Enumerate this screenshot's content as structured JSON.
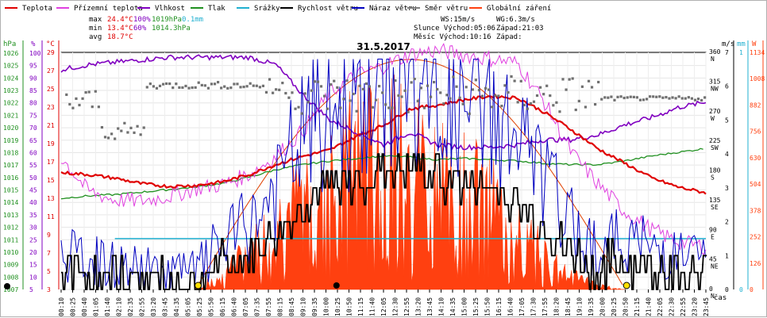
{
  "chart_data": {
    "type": "line",
    "title": "31.5.2017",
    "legend": [
      {
        "name": "Teplota",
        "color": "#e00000"
      },
      {
        "name": "Přízemní teplota",
        "color": "#e040e0"
      },
      {
        "name": "Vlhkost",
        "color": "#8000c0"
      },
      {
        "name": "Tlak",
        "color": "#209020"
      },
      {
        "name": "Srážky",
        "color": "#20b0d0"
      },
      {
        "name": "Rychlost větru",
        "color": "#000000"
      },
      {
        "name": "Náraz větru",
        "color": "#0000c0"
      },
      {
        "name": "Směr větru",
        "color": "#808080"
      },
      {
        "name": "Globální záření",
        "color": "#ff4010"
      }
    ],
    "stats": {
      "max": {
        "label": "max",
        "temp": "24.4°C",
        "hum": "100%",
        "press": "1019hPa",
        "rain": "0.1mm"
      },
      "min": {
        "label": "min",
        "temp": "13.4°C",
        "hum": "60%",
        "press": "1014.3hPa"
      },
      "avg": {
        "label": "avg",
        "temp": "18.7°C"
      }
    },
    "sun": {
      "ws": "WS:15m/s",
      "wg": "WG:6.3m/s",
      "slunce": "Slunce Východ:05:06",
      "slunce_zapad": "Západ:21:03",
      "mesic": "Měsíc  Východ:10:16",
      "mesic_zapad": "Západ:"
    },
    "axes": {
      "hpa_label": "hPa",
      "pct_label": "%",
      "c_label": "°C",
      "ms_label": "m/s",
      "mm_label": "mm",
      "w_label": "W",
      "hpa_ticks": [
        "1026",
        "1025",
        "1024",
        "1023",
        "1022",
        "1021",
        "1020",
        "1019",
        "1018",
        "1017",
        "1016",
        "1015",
        "1014",
        "1013",
        "1012",
        "1011",
        "1010",
        "1009",
        "1008",
        "1007"
      ],
      "pct_ticks": [
        "100",
        "95",
        "90",
        "85",
        "80",
        "75",
        "70",
        "65",
        "60",
        "55",
        "50",
        "45",
        "40",
        "35",
        "30",
        "25",
        "20",
        "15",
        "10",
        "5"
      ],
      "c_ticks": [
        "29",
        "27",
        "25",
        "23",
        "21",
        "19",
        "17",
        "15",
        "13",
        "11",
        "9",
        "7",
        "5",
        "3"
      ],
      "dir_ticks": [
        {
          "v": "360",
          "d": "N"
        },
        {
          "v": "315",
          "d": "NW"
        },
        {
          "v": "270",
          "d": "W"
        },
        {
          "v": "225",
          "d": "SW"
        },
        {
          "v": "180",
          "d": "S"
        },
        {
          "v": "135",
          "d": "SE"
        },
        {
          "v": "90",
          "d": "E"
        },
        {
          "v": "45",
          "d": "NE"
        },
        {
          "v": "0",
          "d": "N"
        }
      ],
      "ms_ticks": [
        "7",
        "6",
        "5",
        "4",
        "3",
        "2",
        "1",
        "0"
      ],
      "mm_ticks": [
        "1",
        "0"
      ],
      "w_ticks": [
        "1134",
        "1008",
        "882",
        "756",
        "630",
        "504",
        "378",
        "252",
        "126",
        "0"
      ],
      "x_ticks": [
        "00:10",
        "00:25",
        "00:40",
        "01:05",
        "01:40",
        "02:10",
        "02:35",
        "02:55",
        "03:20",
        "03:45",
        "04:35",
        "05:05",
        "05:25",
        "05:50",
        "06:15",
        "06:40",
        "07:05",
        "07:35",
        "07:55",
        "08:15",
        "08:45",
        "09:10",
        "09:35",
        "10:00",
        "10:25",
        "10:50",
        "11:15",
        "11:40",
        "12:05",
        "12:30",
        "12:55",
        "13:20",
        "13:45",
        "14:10",
        "14:35",
        "15:00",
        "15:25",
        "15:50",
        "16:15",
        "16:40",
        "17:05",
        "17:30",
        "17:55",
        "18:20",
        "18:45",
        "19:10",
        "19:35",
        "20:00",
        "20:25",
        "20:50",
        "21:15",
        "21:40",
        "22:05",
        "22:30",
        "22:55",
        "23:20",
        "23:45"
      ],
      "x_label": "čas",
      "hpa_range": [
        1007,
        1026
      ],
      "c_range": [
        3,
        29
      ],
      "pct_range": [
        5,
        100
      ],
      "dir_range": [
        0,
        360
      ],
      "w_range": [
        0,
        1134
      ],
      "ms_range": [
        0,
        7
      ],
      "time_range": [
        0,
        24
      ]
    },
    "series": [
      {
        "name": "Teplota",
        "unit": "°C",
        "hours": [
          0,
          1,
          2,
          3,
          4,
          5,
          6,
          7,
          8,
          9,
          10,
          11,
          12,
          13,
          14,
          15,
          16,
          17,
          18,
          19,
          20,
          21,
          22,
          23,
          24
        ],
        "values": [
          15.8,
          15.6,
          15.2,
          14.6,
          14.3,
          14.4,
          14.8,
          15.6,
          16.7,
          17.6,
          18.3,
          19.8,
          21.0,
          22.8,
          23.2,
          23.8,
          24.2,
          24.0,
          22.4,
          20.5,
          18.4,
          16.8,
          15.2,
          14.2,
          13.6
        ]
      },
      {
        "name": "Přízemní teplota",
        "unit": "°C",
        "hours": [
          0,
          1,
          2,
          3,
          4,
          5,
          6,
          7,
          8,
          9,
          10,
          11,
          12,
          13,
          14,
          15,
          16,
          17,
          18,
          19,
          20,
          21,
          22,
          23,
          24
        ],
        "values": [
          17.5,
          13.8,
          12.8,
          12.7,
          13.2,
          14.0,
          14.5,
          15.6,
          17.6,
          20.4,
          24.5,
          26.5,
          27.5,
          28.8,
          29.2,
          28.7,
          28.3,
          27.8,
          23.5,
          18.0,
          14.5,
          11.5,
          9.5,
          8.2,
          7.7
        ]
      },
      {
        "name": "Vlhkost",
        "unit": "%",
        "hours": [
          0,
          1,
          2,
          3,
          4,
          5,
          6,
          7,
          8,
          9,
          10,
          11,
          12,
          13,
          14,
          15,
          16,
          17,
          18,
          19,
          20,
          21,
          22,
          23,
          24
        ],
        "values": [
          93,
          95,
          96,
          97,
          98,
          98,
          98,
          98,
          95,
          83,
          73,
          68,
          63,
          68,
          63,
          62,
          62,
          63,
          65,
          65,
          67,
          71,
          74,
          78,
          80
        ]
      },
      {
        "name": "Tlak",
        "unit": "hPa",
        "hours": [
          0,
          1,
          2,
          3,
          4,
          5,
          6,
          7,
          8,
          9,
          10,
          11,
          12,
          13,
          14,
          15,
          16,
          17,
          18,
          19,
          20,
          21,
          22,
          23,
          24
        ],
        "values": [
          1014.3,
          1014.5,
          1014.6,
          1014.8,
          1015.0,
          1015.2,
          1015.5,
          1016.0,
          1016.6,
          1017.0,
          1017.3,
          1017.5,
          1017.7,
          1017.6,
          1017.4,
          1017.5,
          1017.4,
          1017.3,
          1017.1,
          1017.0,
          1017.0,
          1017.3,
          1017.7,
          1018.0,
          1018.3
        ]
      },
      {
        "name": "Rychlost větru",
        "unit": "m/s",
        "hours": [
          0,
          2,
          4,
          5,
          6,
          7,
          8,
          9,
          10,
          11,
          12,
          13,
          14,
          15,
          16,
          17,
          18,
          19,
          20,
          21,
          22,
          23,
          24
        ],
        "values": [
          0.5,
          0.3,
          0.2,
          0.2,
          0.7,
          1.0,
          1.6,
          2.6,
          3.0,
          3.2,
          3.5,
          3.6,
          3.4,
          3.1,
          3.0,
          2.5,
          1.8,
          1.0,
          0.6,
          0.8,
          0.6,
          0.5,
          0.4
        ]
      },
      {
        "name": "Globální záření",
        "unit": "W",
        "hours": [
          5,
          6,
          7,
          8,
          9,
          10,
          11,
          12,
          13,
          14,
          15,
          16,
          17,
          18,
          19,
          20,
          21
        ],
        "values": [
          0,
          120,
          280,
          500,
          700,
          880,
          1000,
          1050,
          1000,
          940,
          820,
          650,
          450,
          260,
          120,
          30,
          0
        ]
      }
    ]
  }
}
